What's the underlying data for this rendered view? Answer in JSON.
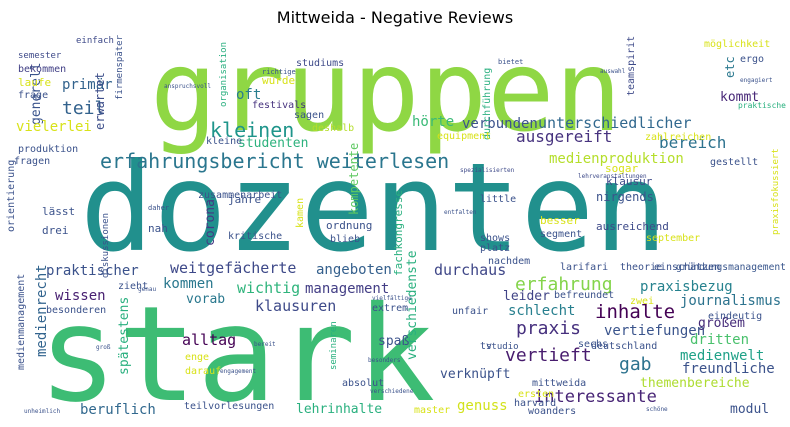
{
  "chart_data": {
    "type": "wordcloud",
    "title": "Mittweida - Negative Reviews",
    "words": [
      {
        "text": "gruppen",
        "color": "#8fd744"
      },
      {
        "text": "dozenten",
        "color": "#21908d"
      },
      {
        "text": "stark",
        "color": "#3dbc74"
      },
      {
        "text": "erfahrungsbericht weiterlesen",
        "color": "#2a768e"
      },
      {
        "text": "kleinen",
        "color": "#1f958b"
      },
      {
        "text": "studenten",
        "color": "#2db27d"
      },
      {
        "text": "teil",
        "color": "#33628d"
      },
      {
        "text": "primär",
        "color": "#33638d"
      },
      {
        "text": "generell",
        "color": "#3a548c"
      },
      {
        "text": "erwartet",
        "color": "#3d4e8a"
      },
      {
        "text": "vielerlei",
        "color": "#d8e219"
      },
      {
        "text": "kompetente",
        "color": "#5ec962"
      },
      {
        "text": "oft",
        "color": "#287d8e"
      },
      {
        "text": "hörte",
        "color": "#3aba76"
      },
      {
        "text": "verbunden",
        "color": "#3b528b"
      },
      {
        "text": "unterschiedlicher",
        "color": "#31688e"
      },
      {
        "text": "bereich",
        "color": "#2c728e"
      },
      {
        "text": "ausgereift",
        "color": "#46327e"
      },
      {
        "text": "kommt",
        "color": "#482878"
      },
      {
        "text": "medienproduktion",
        "color": "#b5de2b"
      },
      {
        "text": "fragen",
        "color": "#3b528b"
      },
      {
        "text": "corona",
        "color": "#443983"
      },
      {
        "text": "weitgefächerte",
        "color": "#3e4989"
      },
      {
        "text": "angeboten",
        "color": "#35608d"
      },
      {
        "text": "durchaus",
        "color": "#3f4788"
      },
      {
        "text": "erfahrung",
        "color": "#84d44b"
      },
      {
        "text": "praxisbezug",
        "color": "#26828e"
      },
      {
        "text": "inhalte",
        "color": "#440154"
      },
      {
        "text": "praxis",
        "color": "#46307e"
      },
      {
        "text": "vertieft",
        "color": "#481c6e"
      },
      {
        "text": "interessante",
        "color": "#482576"
      },
      {
        "text": "journalismus",
        "color": "#2c738e"
      },
      {
        "text": "medienwelt",
        "color": "#1fa187"
      },
      {
        "text": "praktischer",
        "color": "#3b528b"
      },
      {
        "text": "kommen",
        "color": "#2a788e"
      },
      {
        "text": "wissen",
        "color": "#482071"
      },
      {
        "text": "vorab",
        "color": "#2a788e"
      },
      {
        "text": "management",
        "color": "#433e85"
      },
      {
        "text": "leider",
        "color": "#414487"
      },
      {
        "text": "schlecht",
        "color": "#277f8e"
      },
      {
        "text": "vertiefungen",
        "color": "#3a548c"
      },
      {
        "text": "großem",
        "color": "#472c7a"
      },
      {
        "text": "dritten",
        "color": "#4ac16d"
      },
      {
        "text": "gab",
        "color": "#2c728e"
      },
      {
        "text": "freundliche",
        "color": "#3b528b"
      },
      {
        "text": "themenbereiche",
        "color": "#addc30"
      },
      {
        "text": "modul",
        "color": "#3b528b"
      },
      {
        "text": "alltag",
        "color": "#440154"
      },
      {
        "text": "wichtig",
        "color": "#2fb47c"
      },
      {
        "text": "klausuren",
        "color": "#3e4a89"
      },
      {
        "text": "beruflich",
        "color": "#31688e"
      },
      {
        "text": "lehrinhalte",
        "color": "#2ab07f"
      },
      {
        "text": "spätestens",
        "color": "#2ab07f"
      },
      {
        "text": "verschiedenste",
        "color": "#2ab07f"
      },
      {
        "text": "genuss",
        "color": "#d2e21b"
      },
      {
        "text": "verknüpft",
        "color": "#3b528b"
      },
      {
        "text": "spaß",
        "color": "#3b528b"
      },
      {
        "text": "medienrecht",
        "color": "#32648e"
      },
      {
        "text": "gründungsmanagement",
        "color": "#39568c"
      },
      {
        "text": "einfach",
        "color": "#3e4a89"
      },
      {
        "text": "semester",
        "color": "#3e4a89"
      },
      {
        "text": "bekommen",
        "color": "#424086"
      },
      {
        "text": "laufe",
        "color": "#d8e219"
      },
      {
        "text": "frage",
        "color": "#3b528b"
      },
      {
        "text": "produktion",
        "color": "#3b528b"
      },
      {
        "text": "firmenspäter",
        "color": "#3b528b"
      },
      {
        "text": "organisation",
        "color": "#29af7f"
      },
      {
        "text": "studiums",
        "color": "#3e4a89"
      },
      {
        "text": "richtige",
        "color": "#3b528b"
      },
      {
        "text": "würde",
        "color": "#d8e219"
      },
      {
        "text": "festivals",
        "color": "#46327e"
      },
      {
        "text": "sagen",
        "color": "#3b528b"
      },
      {
        "text": "deshalb",
        "color": "#b5de2b"
      },
      {
        "text": "kleine",
        "color": "#3b528b"
      },
      {
        "text": "zusammenarbeit",
        "color": "#3b528b"
      },
      {
        "text": "durchführung",
        "color": "#2ab07f"
      },
      {
        "text": "bietet",
        "color": "#3b528b"
      },
      {
        "text": "teamspirit",
        "color": "#3e4a89"
      },
      {
        "text": "möglichkeit",
        "color": "#d8e219"
      },
      {
        "text": "ergo",
        "color": "#3b528b"
      },
      {
        "text": "etc",
        "color": "#2a788e"
      },
      {
        "text": "engagiert",
        "color": "#3b528b"
      },
      {
        "text": "praktische",
        "color": "#2ab07f"
      },
      {
        "text": "zahlreichen",
        "color": "#d8e219"
      },
      {
        "text": "equipment",
        "color": "#d8e219"
      },
      {
        "text": "gestellt",
        "color": "#3b528b"
      },
      {
        "text": "praxisfokussiert",
        "color": "#d8e219"
      },
      {
        "text": "sogar",
        "color": "#d8e219"
      },
      {
        "text": "klausur",
        "color": "#3e4a89"
      },
      {
        "text": "nirgends",
        "color": "#3b528b"
      },
      {
        "text": "lehrveranstaltungen",
        "color": "#3e4a89"
      },
      {
        "text": "spezialisierten",
        "color": "#3e4a89"
      },
      {
        "text": "fachkongresse",
        "color": "#2ab07f"
      },
      {
        "text": "little",
        "color": "#3b528b"
      },
      {
        "text": "entfalten",
        "color": "#3b528b"
      },
      {
        "text": "besser",
        "color": "#d8e219"
      },
      {
        "text": "segment",
        "color": "#3b528b"
      },
      {
        "text": "ausreichend",
        "color": "#3e4a89"
      },
      {
        "text": "eindeutig",
        "color": "#3b528b"
      },
      {
        "text": "september",
        "color": "#d8e219"
      },
      {
        "text": "orientierung",
        "color": "#3b528b"
      },
      {
        "text": "lässt",
        "color": "#3b528b"
      },
      {
        "text": "drei",
        "color": "#3b528b"
      },
      {
        "text": "diskussionen",
        "color": "#3b528b"
      },
      {
        "text": "daher",
        "color": "#3b528b"
      },
      {
        "text": "nah",
        "color": "#3b528b"
      },
      {
        "text": "jahre",
        "color": "#3b528b"
      },
      {
        "text": "kritische",
        "color": "#3b528b"
      },
      {
        "text": "kamen",
        "color": "#d8e219"
      },
      {
        "text": "ordnung",
        "color": "#3b528b"
      },
      {
        "text": "blieb",
        "color": "#3b528b"
      },
      {
        "text": "shows",
        "color": "#3b528b"
      },
      {
        "text": "platz",
        "color": "#3b528b"
      },
      {
        "text": "nachdem",
        "color": "#3b528b"
      },
      {
        "text": "larifari",
        "color": "#3b528b"
      },
      {
        "text": "theorie",
        "color": "#3b528b"
      },
      {
        "text": "einschätzen",
        "color": "#3b528b"
      },
      {
        "text": "medienmanagement",
        "color": "#3b528b"
      },
      {
        "text": "zieht",
        "color": "#3b528b"
      },
      {
        "text": "genau",
        "color": "#3b528b"
      },
      {
        "text": "vielfältige",
        "color": "#3b528b"
      },
      {
        "text": "extrem",
        "color": "#3b528b"
      },
      {
        "text": "befreundet",
        "color": "#3b528b"
      },
      {
        "text": "zwei",
        "color": "#d8e219"
      },
      {
        "text": "besonderen",
        "color": "#3b528b"
      },
      {
        "text": "unfair",
        "color": "#3b528b"
      },
      {
        "text": "sechs",
        "color": "#3b528b"
      },
      {
        "text": "tv",
        "color": "#3b528b"
      },
      {
        "text": "studio",
        "color": "#3b528b"
      },
      {
        "text": "deutschland",
        "color": "#3b528b"
      },
      {
        "text": "engagement",
        "color": "#3b528b"
      },
      {
        "text": "seminaren",
        "color": "#2ab07f"
      },
      {
        "text": "groß",
        "color": "#3b528b"
      },
      {
        "text": "bereit",
        "color": "#3b528b"
      },
      {
        "text": "darauf",
        "color": "#d8e219"
      },
      {
        "text": "enge",
        "color": "#d8e219"
      },
      {
        "text": "absolut",
        "color": "#3b528b"
      },
      {
        "text": "besonders",
        "color": "#3b528b"
      },
      {
        "text": "ersten",
        "color": "#d8e219"
      },
      {
        "text": "harvard",
        "color": "#3b528b"
      },
      {
        "text": "mittweida",
        "color": "#3b528b"
      },
      {
        "text": "verschiedene",
        "color": "#3b528b"
      },
      {
        "text": "teilvorlesungen",
        "color": "#3b528b"
      },
      {
        "text": "master",
        "color": "#d8e219"
      },
      {
        "text": "woanders",
        "color": "#3b528b"
      },
      {
        "text": "unheimlich",
        "color": "#3b528b"
      },
      {
        "text": "schöne",
        "color": "#3b528b"
      },
      {
        "text": "anspruchsvoll",
        "color": "#3b528b"
      },
      {
        "text": "auswahl",
        "color": "#3b528b"
      }
    ]
  }
}
